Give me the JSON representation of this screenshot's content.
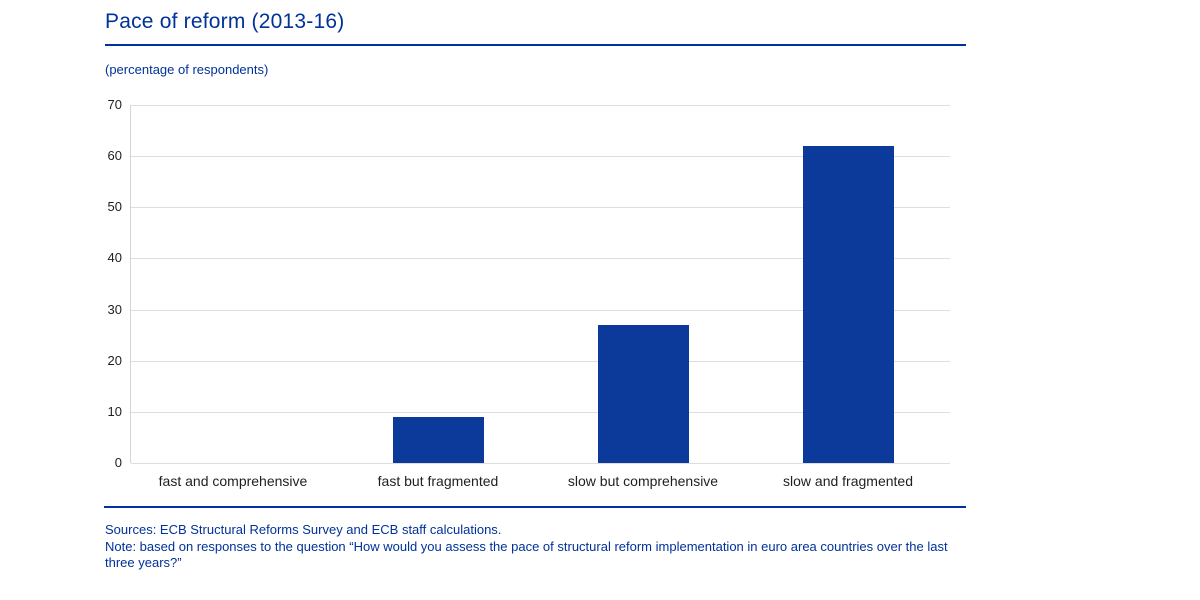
{
  "header": {
    "title": "Pace of reform (2013-16)",
    "subtitle": "(percentage of respondents)"
  },
  "chart_data": {
    "type": "bar",
    "title": "Pace of reform (2013-16)",
    "subtitle": "(percentage of respondents)",
    "categories": [
      "fast and comprehensive",
      "fast but fragmented",
      "slow but comprehensive",
      "slow and fragmented"
    ],
    "values": [
      0,
      9,
      27,
      62
    ],
    "xlabel": "",
    "ylabel": "",
    "ylim": [
      0,
      70
    ],
    "yticks": [
      0,
      10,
      20,
      30,
      40,
      50,
      60,
      70
    ],
    "grid": true,
    "legend": false,
    "bar_color": "#0c3a9b"
  },
  "footer": {
    "sources": "Sources: ECB Structural Reforms Survey and ECB staff calculations.",
    "note": "Note: based on responses to the question “How would you assess the pace of structural reform implementation in euro area countries over the last three years?”"
  },
  "colors": {
    "accent_blue": "#003299",
    "bar_blue": "#0c3a9b",
    "grid_gray": "#dedede",
    "axis_gray": "#d4d4d4",
    "text_black": "#1f1f1f"
  }
}
